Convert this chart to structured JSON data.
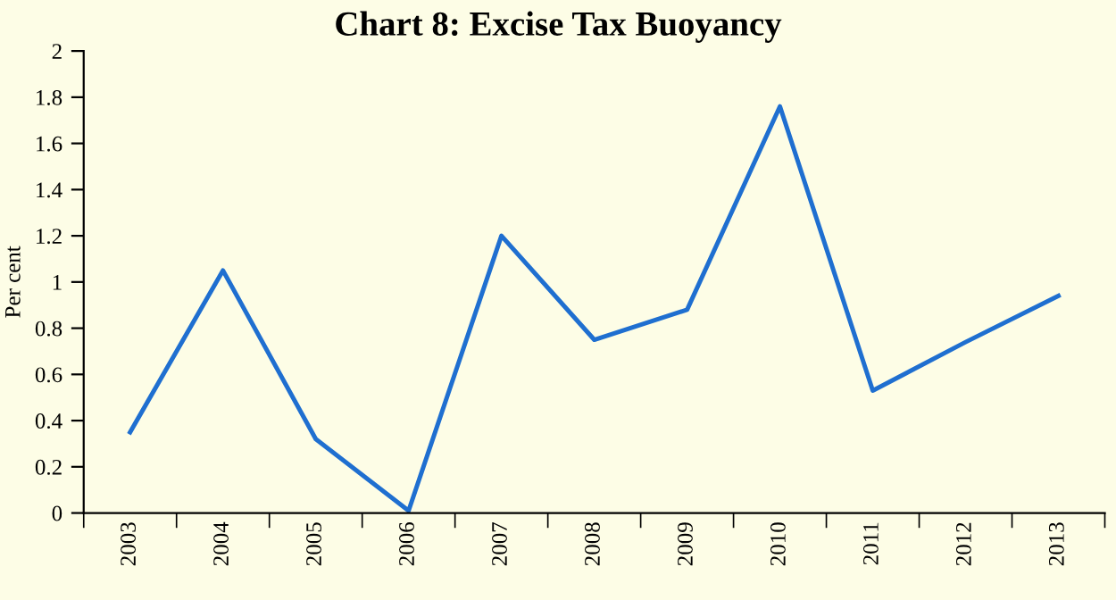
{
  "chart_data": {
    "type": "line",
    "title": "Chart 8: Excise Tax Buoyancy",
    "ylabel": "Per cent",
    "categories": [
      "2003",
      "2004",
      "2005",
      "2006",
      "2007",
      "2008",
      "2009",
      "2010",
      "2011",
      "2012",
      "2013"
    ],
    "series": [
      {
        "color": "#1f6fd0",
        "values": [
          0.35,
          1.05,
          0.32,
          0.01,
          1.2,
          0.75,
          0.88,
          1.76,
          0.53,
          0.74,
          0.94
        ]
      }
    ],
    "ylim": [
      0,
      2
    ],
    "yticks": [
      0,
      0.2,
      0.4,
      0.6,
      0.8,
      1,
      1.2,
      1.4,
      1.6,
      1.8,
      2
    ],
    "grid": false,
    "marker": "none",
    "line_style": "solid"
  }
}
